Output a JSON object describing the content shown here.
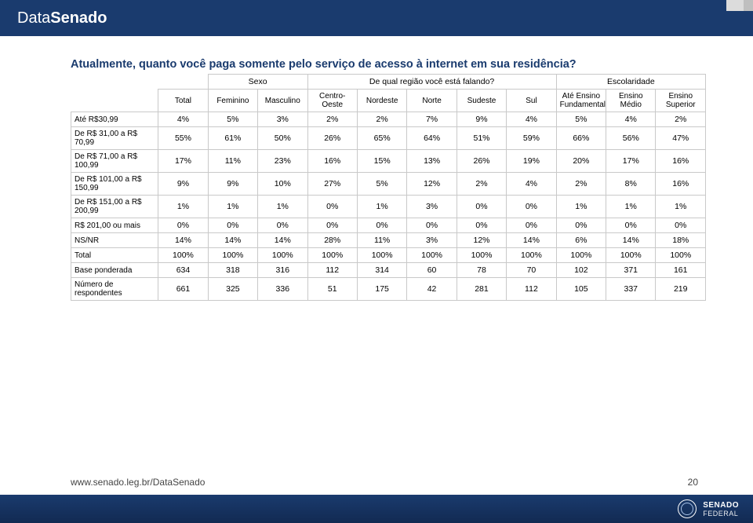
{
  "colors": {
    "brand_navy": "#1a3b6e",
    "table_border": "#c9c9c9",
    "text": "#000000",
    "footer_text": "#444444",
    "white": "#ffffff"
  },
  "header": {
    "brand_light": "Data",
    "brand_bold": "Senado"
  },
  "question": "Atualmente, quanto você paga somente pelo serviço de acesso à internet em sua residência?",
  "table": {
    "group_headers": [
      "Sexo",
      "De qual região você está falando?",
      "Escolaridade"
    ],
    "col_total": "Total",
    "cols": [
      "Feminino",
      "Masculino",
      "Centro-Oeste",
      "Nordeste",
      "Norte",
      "Sudeste",
      "Sul",
      "Até Ensino Fundamental",
      "Ensino Médio",
      "Ensino Superior"
    ],
    "rows": [
      {
        "label": "Até R$30,99",
        "vals": [
          "4%",
          "5%",
          "3%",
          "2%",
          "2%",
          "7%",
          "9%",
          "4%",
          "5%",
          "4%",
          "2%"
        ]
      },
      {
        "label": "De R$ 31,00 a R$ 70,99",
        "vals": [
          "55%",
          "61%",
          "50%",
          "26%",
          "65%",
          "64%",
          "51%",
          "59%",
          "66%",
          "56%",
          "47%"
        ]
      },
      {
        "label": "De R$ 71,00 a R$ 100,99",
        "vals": [
          "17%",
          "11%",
          "23%",
          "16%",
          "15%",
          "13%",
          "26%",
          "19%",
          "20%",
          "17%",
          "16%"
        ]
      },
      {
        "label": "De R$ 101,00 a R$ 150,99",
        "vals": [
          "9%",
          "9%",
          "10%",
          "27%",
          "5%",
          "12%",
          "2%",
          "4%",
          "2%",
          "8%",
          "16%"
        ]
      },
      {
        "label": "De R$ 151,00 a R$ 200,99",
        "vals": [
          "1%",
          "1%",
          "1%",
          "0%",
          "1%",
          "3%",
          "0%",
          "0%",
          "1%",
          "1%",
          "1%"
        ]
      },
      {
        "label": "R$ 201,00 ou mais",
        "vals": [
          "0%",
          "0%",
          "0%",
          "0%",
          "0%",
          "0%",
          "0%",
          "0%",
          "0%",
          "0%",
          "0%"
        ]
      },
      {
        "label": "NS/NR",
        "vals": [
          "14%",
          "14%",
          "14%",
          "28%",
          "11%",
          "3%",
          "12%",
          "14%",
          "6%",
          "14%",
          "18%"
        ]
      },
      {
        "label": "Total",
        "vals": [
          "100%",
          "100%",
          "100%",
          "100%",
          "100%",
          "100%",
          "100%",
          "100%",
          "100%",
          "100%",
          "100%"
        ]
      },
      {
        "label": "Base ponderada",
        "vals": [
          "634",
          "318",
          "316",
          "112",
          "314",
          "60",
          "78",
          "70",
          "102",
          "371",
          "161"
        ]
      },
      {
        "label": "Número de respondentes",
        "vals": [
          "661",
          "325",
          "336",
          "51",
          "175",
          "42",
          "281",
          "112",
          "105",
          "337",
          "219"
        ]
      }
    ]
  },
  "footer": {
    "url": "www.senado.leg.br/DataSenado",
    "page": "20",
    "logo_line1": "SENADO",
    "logo_line2": "FEDERAL"
  }
}
